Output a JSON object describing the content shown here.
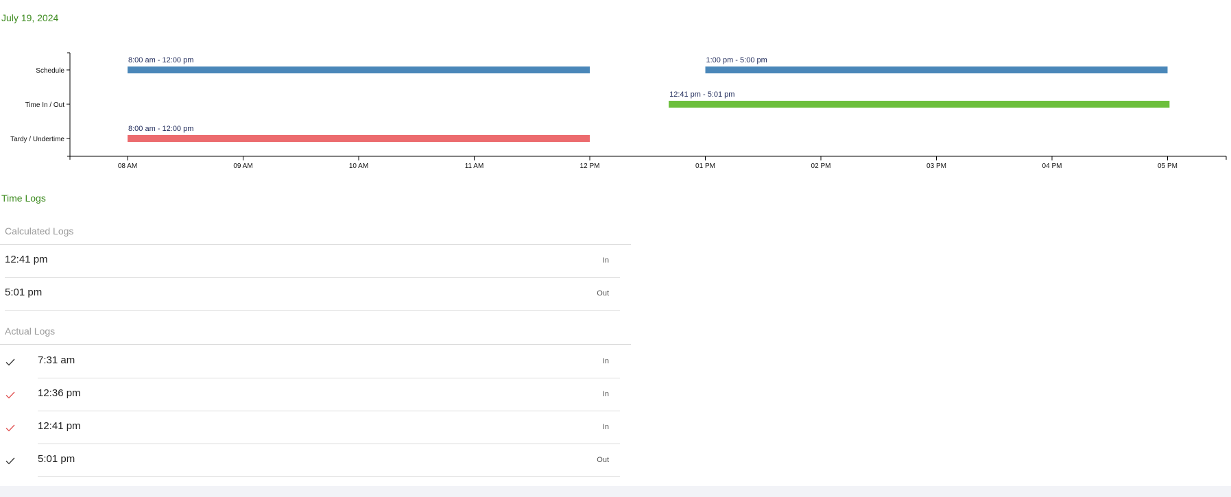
{
  "date_label": "July 19, 2024",
  "timeline": {
    "rows": [
      {
        "label": "Schedule",
        "color": "#4a87b9"
      },
      {
        "label": "Time In / Out",
        "color": "#6cbf3c"
      },
      {
        "label": "Tardy / Undertime",
        "color": "#ec6b6e"
      }
    ],
    "ticks": [
      "08 AM",
      "09 AM",
      "10 AM",
      "11 AM",
      "12 PM",
      "01 PM",
      "02 PM",
      "03 PM",
      "04 PM",
      "05 PM"
    ],
    "bars": [
      {
        "row": 0,
        "start": 8.0,
        "end": 12.0,
        "label": "8:00 am - 12:00 pm"
      },
      {
        "row": 0,
        "start": 13.0,
        "end": 17.0,
        "label": "1:00 pm - 5:00 pm"
      },
      {
        "row": 1,
        "start": 12.683,
        "end": 17.017,
        "label": "12:41 pm - 5:01 pm"
      },
      {
        "row": 2,
        "start": 8.0,
        "end": 12.0,
        "label": "8:00 am - 12:00 pm"
      }
    ]
  },
  "time_logs": {
    "title": "Time Logs",
    "calculated": {
      "title": "Calculated Logs",
      "items": [
        {
          "time": "12:41 pm",
          "type": "In"
        },
        {
          "time": "5:01 pm",
          "type": "Out"
        }
      ]
    },
    "actual": {
      "title": "Actual Logs",
      "items": [
        {
          "time": "7:31 am",
          "type": "In",
          "check_color": "#333333"
        },
        {
          "time": "12:36 pm",
          "type": "In",
          "check_color": "#e05050"
        },
        {
          "time": "12:41 pm",
          "type": "In",
          "check_color": "#e05050"
        },
        {
          "time": "5:01 pm",
          "type": "Out",
          "check_color": "#333333"
        }
      ]
    }
  }
}
